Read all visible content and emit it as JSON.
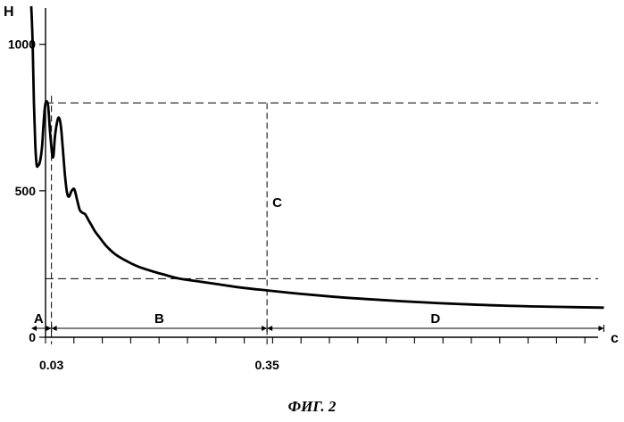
{
  "chart_data": {
    "type": "line",
    "ylabel": "H",
    "xlabel": "c",
    "y_ticks": [
      "1000",
      "500",
      "0"
    ],
    "x_ticks": [
      "0.03",
      "0.35"
    ],
    "grid": false,
    "series": [
      {
        "x": [
          0.0,
          0.002,
          0.004,
          0.006,
          0.008,
          0.01,
          0.013,
          0.016,
          0.018,
          0.02,
          0.022,
          0.025,
          0.028,
          0.031,
          0.033,
          0.035,
          0.038,
          0.041,
          0.044,
          0.047,
          0.05,
          0.053,
          0.056,
          0.06,
          0.064,
          0.068,
          0.072,
          0.076,
          0.08,
          0.085,
          0.09,
          0.095,
          0.1,
          0.105,
          0.11,
          0.115,
          0.12,
          0.125,
          0.13,
          0.14,
          0.15,
          0.16,
          0.18,
          0.2,
          0.22,
          0.25,
          0.28,
          0.31,
          0.35,
          0.4,
          0.45,
          0.5,
          0.55,
          0.6,
          0.65,
          0.7,
          0.75,
          0.8,
          0.85
        ],
        "values": [
          1130,
          1010,
          800,
          660,
          590,
          585,
          600,
          650,
          720,
          780,
          805,
          790,
          700,
          625,
          620,
          680,
          730,
          750,
          720,
          640,
          555,
          495,
          480,
          500,
          505,
          470,
          435,
          425,
          420,
          400,
          380,
          360,
          345,
          330,
          315,
          303,
          292,
          283,
          275,
          262,
          250,
          240,
          225,
          212,
          200,
          190,
          180,
          170,
          160,
          148,
          138,
          130,
          123,
          117,
          112,
          108,
          105,
          103,
          101
        ]
      }
    ],
    "reference_lines": {
      "horizontal": [
        800,
        200
      ],
      "vertical": [
        0.03,
        0.35
      ]
    },
    "vertical_line_label": "C",
    "regions": [
      {
        "label": "A",
        "from": 0.0,
        "to": 0.03
      },
      {
        "label": "B",
        "from": 0.03,
        "to": 0.35
      },
      {
        "label": "D",
        "from": 0.35,
        "to": 0.85
      }
    ],
    "xlim": [
      0,
      0.86
    ],
    "ylim": [
      0,
      1130
    ]
  },
  "caption": "ФИГ. 2"
}
